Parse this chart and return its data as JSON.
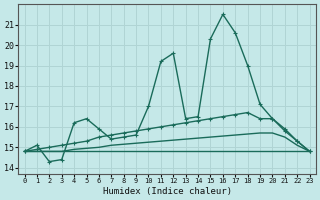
{
  "xlabel": "Humidex (Indice chaleur)",
  "xlim": [
    -0.5,
    23.5
  ],
  "ylim": [
    13.7,
    22.0
  ],
  "xticks": [
    0,
    1,
    2,
    3,
    4,
    5,
    6,
    7,
    8,
    9,
    10,
    11,
    12,
    13,
    14,
    15,
    16,
    17,
    18,
    19,
    20,
    21,
    22,
    23
  ],
  "yticks": [
    14,
    15,
    16,
    17,
    18,
    19,
    20,
    21
  ],
  "background_color": "#c5e8e8",
  "grid_color": "#b0d4d4",
  "line_color": "#1a6b5a",
  "line1_x": [
    0,
    1,
    2,
    3,
    4,
    5,
    6,
    7,
    8,
    9,
    10,
    11,
    12,
    13,
    14,
    15,
    16,
    17,
    18,
    19,
    20,
    21,
    22,
    23
  ],
  "line1_y": [
    14.8,
    15.1,
    14.3,
    14.4,
    16.2,
    16.4,
    15.9,
    15.4,
    15.5,
    15.6,
    17.0,
    19.2,
    19.6,
    16.4,
    16.5,
    20.3,
    21.5,
    20.6,
    19.0,
    17.1,
    16.4,
    15.8,
    15.3,
    14.8
  ],
  "line2_x": [
    0,
    1,
    2,
    3,
    4,
    5,
    6,
    7,
    8,
    9,
    10,
    11,
    12,
    13,
    14,
    15,
    16,
    17,
    18,
    19,
    20,
    21,
    22,
    23
  ],
  "line2_y": [
    14.8,
    14.9,
    15.0,
    15.1,
    15.2,
    15.3,
    15.5,
    15.6,
    15.7,
    15.8,
    15.9,
    16.0,
    16.1,
    16.2,
    16.3,
    16.4,
    16.5,
    16.6,
    16.7,
    16.4,
    16.4,
    15.9,
    15.3,
    14.8
  ],
  "line3_x": [
    0,
    3,
    4,
    5,
    6,
    7,
    8,
    9,
    10,
    11,
    12,
    13,
    14,
    15,
    16,
    17,
    18,
    19,
    20,
    21,
    22,
    23
  ],
  "line3_y": [
    14.8,
    14.8,
    14.9,
    14.95,
    15.0,
    15.1,
    15.15,
    15.2,
    15.25,
    15.3,
    15.35,
    15.4,
    15.45,
    15.5,
    15.55,
    15.6,
    15.65,
    15.7,
    15.7,
    15.5,
    15.1,
    14.8
  ],
  "line4_x": [
    0,
    23
  ],
  "line4_y": [
    14.8,
    14.8
  ]
}
